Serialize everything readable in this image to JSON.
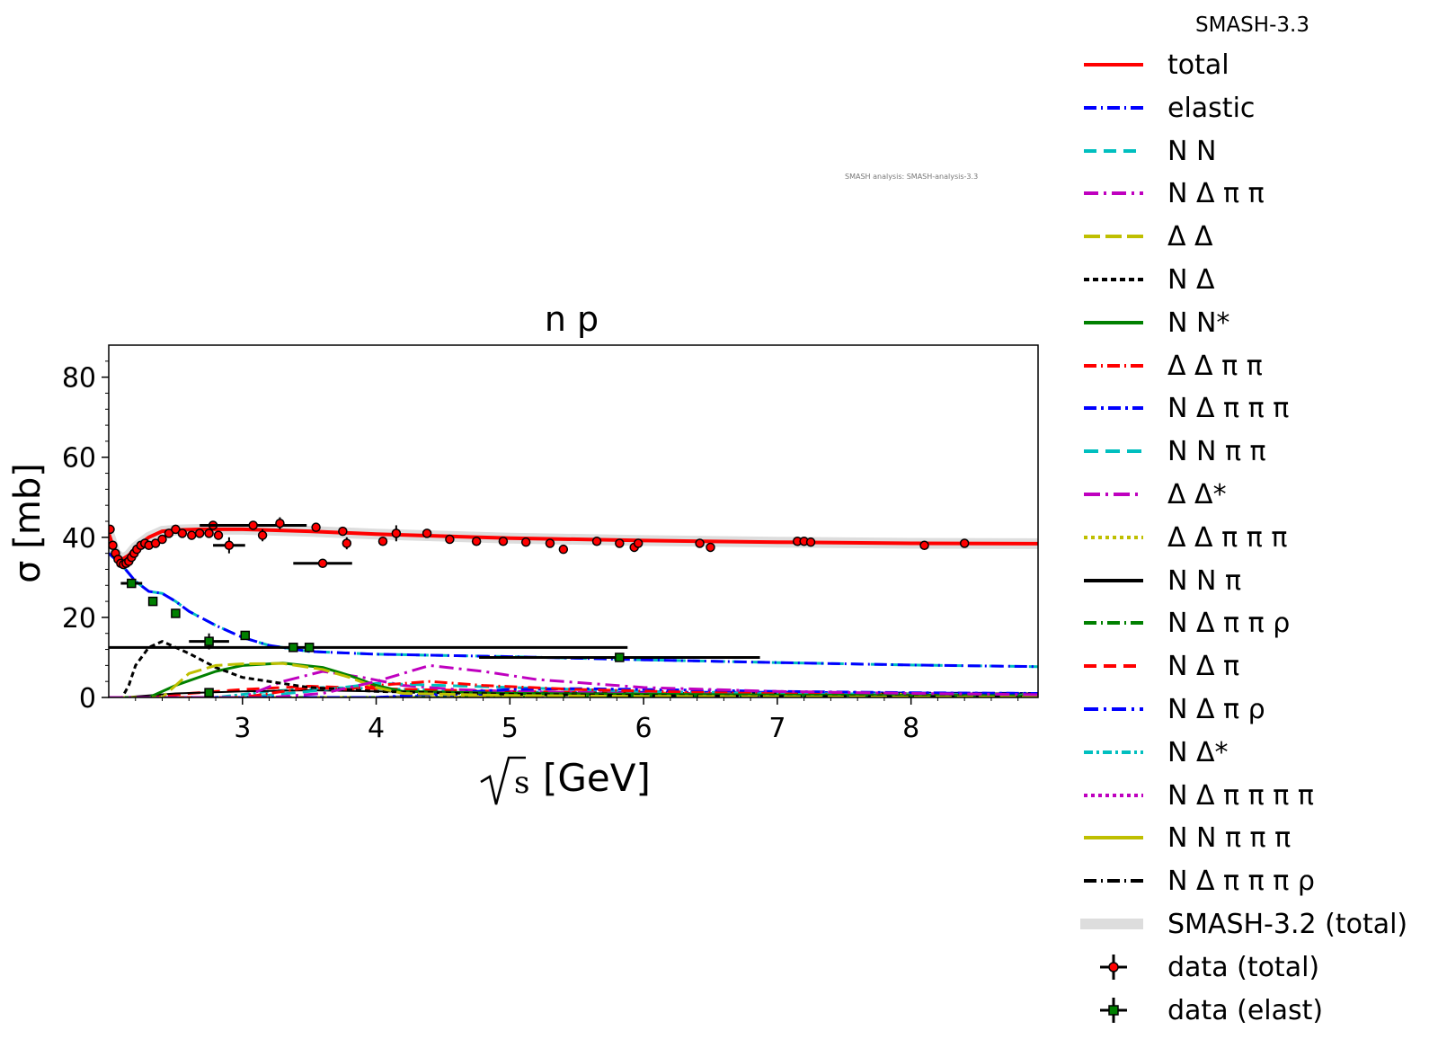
{
  "chart_data": {
    "type": "line",
    "title": "n p",
    "xlabel": "[GeV]",
    "xlabel_prefix": "√s",
    "ylabel": "σ [mb]",
    "xlim": [
      2.0,
      8.95
    ],
    "ylim": [
      0,
      88
    ],
    "x_ticks": [
      3,
      4,
      5,
      6,
      7,
      8
    ],
    "y_ticks": [
      0,
      20,
      40,
      60,
      80
    ],
    "watermark": "SMASH analysis: SMASH-analysis-3.3",
    "legend_title": "SMASH-3.3",
    "legend_position": "right, outside",
    "series": [
      {
        "name": "total",
        "color": "#ff0000",
        "dash": "solid",
        "width": 4,
        "x": [
          2.0,
          2.05,
          2.1,
          2.15,
          2.2,
          2.3,
          2.4,
          2.5,
          2.7,
          3.0,
          3.5,
          4.0,
          5.0,
          6.0,
          7.0,
          8.0,
          8.95
        ],
        "y": [
          41,
          36,
          34.5,
          35.5,
          37.5,
          40,
          41.5,
          41.8,
          42,
          42,
          41.5,
          40.8,
          39.8,
          39.2,
          38.8,
          38.5,
          38.4
        ]
      },
      {
        "name": "elastic",
        "color": "#0000ff",
        "dash": "14,5,2,5",
        "width": 3,
        "x": [
          2.0,
          2.1,
          2.2,
          2.3,
          2.4,
          2.5,
          2.6,
          2.8,
          3.0,
          3.2,
          3.5,
          4.0,
          5.0,
          6.0,
          7.0,
          8.0,
          8.95
        ],
        "y": [
          36,
          33,
          29,
          26.5,
          26,
          24,
          21.5,
          18,
          15,
          13,
          11.5,
          10.8,
          10.2,
          9.4,
          8.7,
          8.1,
          7.7
        ]
      },
      {
        "name": "N N",
        "color": "#00bfbf",
        "dash": "14,8",
        "width": 3,
        "x": [
          2.0,
          2.1,
          2.2,
          2.3,
          2.4,
          2.5,
          2.6,
          2.8,
          3.0,
          3.2,
          3.5,
          4.0,
          5.0,
          6.0,
          7.0,
          8.0,
          8.95
        ],
        "y": [
          36,
          33,
          29,
          26.5,
          26,
          24,
          21.5,
          18,
          15,
          13,
          11.5,
          10.8,
          10.2,
          9.4,
          8.7,
          8.1,
          7.7
        ]
      },
      {
        "name": "N Δ π π",
        "color": "#bf00bf",
        "dash": "16,6,3,6",
        "width": 3,
        "x": [
          2.0,
          3.2,
          3.6,
          4.0,
          4.4,
          4.8,
          5.2,
          6.0,
          7.0,
          8.0,
          8.95
        ],
        "y": [
          0,
          0,
          1,
          4,
          8,
          6.5,
          4.5,
          2.5,
          1.5,
          1.0,
          0.7
        ]
      },
      {
        "name": "Δ Δ",
        "color": "#bfbf00",
        "dash": "18,6",
        "width": 3,
        "x": [
          2.0,
          2.4,
          2.6,
          2.8,
          3.0,
          3.3,
          3.6,
          3.8,
          4.0,
          4.2,
          5.0,
          6.0,
          7.0,
          8.0,
          8.95
        ],
        "y": [
          0,
          0,
          6,
          8,
          8.4,
          8.5,
          7,
          5,
          2.5,
          1,
          0.5,
          0.3,
          0.2,
          0.1,
          0.1
        ]
      },
      {
        "name": "N Δ",
        "color": "#000000",
        "dash": "6,4",
        "width": 3,
        "x": [
          2.0,
          2.1,
          2.15,
          2.2,
          2.3,
          2.4,
          2.6,
          2.8,
          3.0,
          3.5,
          4.0,
          5.0,
          6.0,
          7.0,
          8.0,
          8.95
        ],
        "y": [
          0,
          0,
          3,
          8,
          12.5,
          14,
          11,
          7.5,
          5,
          2.5,
          1.5,
          0.8,
          0.5,
          0.3,
          0.2,
          0.1
        ]
      },
      {
        "name": "N N*",
        "color": "#008000",
        "dash": "solid",
        "width": 3,
        "x": [
          2.0,
          2.3,
          2.5,
          2.8,
          3.0,
          3.3,
          3.6,
          3.8,
          4.0,
          4.2,
          5.0,
          6.0,
          7.0,
          8.0,
          8.95
        ],
        "y": [
          0,
          0,
          3,
          6.5,
          8,
          8.6,
          7.5,
          5.5,
          3,
          1.5,
          1.0,
          0.8,
          0.6,
          0.5,
          0.4
        ]
      },
      {
        "name": "Δ Δ π π",
        "color": "#ff0000",
        "dash": "14,5,2,5",
        "width": 3,
        "x": [
          2.0,
          3.0,
          3.5,
          3.8,
          4.0,
          4.4,
          4.8,
          5.5,
          6.5,
          7.5,
          8.95
        ],
        "y": [
          0,
          0,
          2.5,
          2,
          3,
          4,
          3,
          2,
          1.2,
          0.7,
          0.4
        ]
      },
      {
        "name": "N Δ π π π",
        "color": "#0000ff",
        "dash": "14,5,3,5",
        "width": 3,
        "x": [
          2.0,
          4.0,
          4.5,
          5.0,
          5.5,
          6.0,
          7.0,
          8.0,
          8.95
        ],
        "y": [
          0,
          0,
          1,
          2,
          2.2,
          2,
          1.5,
          1.2,
          1.0
        ]
      },
      {
        "name": "N N π π",
        "color": "#00bfbf",
        "dash": "16,8",
        "width": 3,
        "x": [
          2.0,
          3.0,
          3.5,
          4.0,
          4.5,
          5.0,
          5.5,
          6.0,
          7.0,
          8.0,
          8.95
        ],
        "y": [
          0,
          0,
          1.5,
          3.5,
          3,
          2.5,
          2,
          1.5,
          1,
          0.8,
          0.6
        ]
      },
      {
        "name": "Δ Δ*",
        "color": "#bf00bf",
        "dash": "18,6,3,6",
        "width": 3,
        "x": [
          2.0,
          3.0,
          3.3,
          3.6,
          3.9,
          4.2,
          4.6,
          5.0,
          6.0,
          7.0,
          8.95
        ],
        "y": [
          0,
          0,
          4,
          6.5,
          5,
          3,
          2,
          1.5,
          1,
          0.7,
          0.4
        ]
      },
      {
        "name": "Δ Δ π π π",
        "color": "#bfbf00",
        "dash": "4,4",
        "width": 3,
        "x": [
          2.0,
          4.5,
          5.0,
          6.0,
          7.0,
          8.0,
          8.95
        ],
        "y": [
          0,
          0,
          0.5,
          0.9,
          0.9,
          0.8,
          0.7
        ]
      },
      {
        "name": "N N π",
        "color": "#000000",
        "dash": "solid",
        "width": 2,
        "x": [
          2.0,
          2.1,
          2.3,
          2.5,
          3.0,
          3.5,
          4.0,
          5.0,
          6.0,
          7.0,
          8.0,
          8.95
        ],
        "y": [
          0,
          0,
          0.5,
          1,
          1.5,
          1.8,
          1.5,
          1.2,
          1.0,
          1.0,
          1.0,
          1.0
        ]
      },
      {
        "name": "N Δ π π ρ",
        "color": "#008000",
        "dash": "14,5,2,5",
        "width": 3,
        "x": [
          2.0,
          5.0,
          6.0,
          7.0,
          8.0,
          8.95
        ],
        "y": [
          0,
          0,
          0.3,
          0.6,
          0.7,
          0.7
        ]
      },
      {
        "name": "N Δ π",
        "color": "#ff0000",
        "dash": "14,8",
        "width": 3,
        "x": [
          2.0,
          2.3,
          2.6,
          3.0,
          3.5,
          4.0,
          5.0,
          6.0,
          7.0,
          8.0,
          8.95
        ],
        "y": [
          0,
          0,
          1,
          2,
          2.8,
          2.2,
          1.5,
          1.1,
          0.8,
          0.6,
          0.5
        ]
      },
      {
        "name": "N Δ π ρ",
        "color": "#0000ff",
        "dash": "16,6,3,6",
        "width": 3,
        "x": [
          2.0,
          4.0,
          5.0,
          6.0,
          7.0,
          8.0,
          8.95
        ],
        "y": [
          0,
          0,
          1,
          1.3,
          1.3,
          1.1,
          1.0
        ]
      },
      {
        "name": "N Δ*",
        "color": "#00bfbf",
        "dash": "10,4,3,4",
        "width": 3,
        "x": [
          2.0,
          2.8,
          3.2,
          3.6,
          4.0,
          4.5,
          5.0,
          6.0,
          7.0,
          8.0,
          8.95
        ],
        "y": [
          0,
          0,
          1.5,
          2.5,
          2.2,
          1.8,
          1.4,
          1.0,
          0.7,
          0.5,
          0.4
        ]
      },
      {
        "name": "N Δ π π π π",
        "color": "#bf00bf",
        "dash": "4,4",
        "width": 3,
        "x": [
          2.0,
          5.5,
          6.5,
          7.5,
          8.95
        ],
        "y": [
          0,
          0,
          0.3,
          0.4,
          0.4
        ]
      },
      {
        "name": "N N π π π",
        "color": "#bfbf00",
        "dash": "solid",
        "width": 2,
        "x": [
          2.0,
          4.0,
          5.0,
          6.0,
          7.0,
          8.0,
          8.95
        ],
        "y": [
          0,
          0,
          0.4,
          0.6,
          0.6,
          0.6,
          0.5
        ]
      },
      {
        "name": "N Δ π π π ρ",
        "color": "#000000",
        "dash": "14,5,2,5",
        "width": 3,
        "x": [
          2.0,
          6.0,
          7.0,
          8.0,
          8.95
        ],
        "y": [
          0,
          0,
          0.2,
          0.3,
          0.4
        ]
      },
      {
        "name": "SMASH-3.2 (total)",
        "color": "#dddddd",
        "dash": "band",
        "width": 12,
        "x": [
          2.0,
          2.05,
          2.1,
          2.15,
          2.2,
          2.3,
          2.4,
          2.5,
          2.7,
          3.0,
          3.5,
          4.0,
          5.0,
          6.0,
          7.0,
          8.0,
          8.95
        ],
        "y": [
          41,
          36,
          34.5,
          35.5,
          37.5,
          40,
          41.5,
          41.8,
          42,
          42,
          41.5,
          40.8,
          39.8,
          39.2,
          38.8,
          38.5,
          38.4
        ]
      }
    ],
    "data_total": [
      {
        "x": 2.01,
        "y": 42
      },
      {
        "x": 2.03,
        "y": 38
      },
      {
        "x": 2.05,
        "y": 36
      },
      {
        "x": 2.07,
        "y": 34.5
      },
      {
        "x": 2.09,
        "y": 33.5
      },
      {
        "x": 2.11,
        "y": 33.2
      },
      {
        "x": 2.13,
        "y": 33.5
      },
      {
        "x": 2.15,
        "y": 34
      },
      {
        "x": 2.17,
        "y": 35
      },
      {
        "x": 2.19,
        "y": 36
      },
      {
        "x": 2.21,
        "y": 37
      },
      {
        "x": 2.24,
        "y": 38
      },
      {
        "x": 2.27,
        "y": 38.5
      },
      {
        "x": 2.3,
        "y": 38
      },
      {
        "x": 2.35,
        "y": 38.5
      },
      {
        "x": 2.4,
        "y": 39.5
      },
      {
        "x": 2.45,
        "y": 41
      },
      {
        "x": 2.5,
        "y": 42
      },
      {
        "x": 2.55,
        "y": 41
      },
      {
        "x": 2.62,
        "y": 40.5
      },
      {
        "x": 2.68,
        "y": 41
      },
      {
        "x": 2.75,
        "y": 41
      },
      {
        "x": 2.82,
        "y": 40.5
      },
      {
        "x": 2.9,
        "y": 38,
        "xerr": 0.12,
        "yerr": 2
      },
      {
        "x": 2.78,
        "y": 43
      },
      {
        "x": 3.08,
        "y": 43,
        "xerr": 0.4
      },
      {
        "x": 3.15,
        "y": 40.5,
        "yerr": 1.5
      },
      {
        "x": 3.28,
        "y": 43.5,
        "yerr": 1.5
      },
      {
        "x": 3.55,
        "y": 42.5
      },
      {
        "x": 3.6,
        "y": 33.5,
        "xerr": 0.22,
        "yerr": 1
      },
      {
        "x": 3.75,
        "y": 41.5
      },
      {
        "x": 3.78,
        "y": 38.5,
        "yerr": 1.5
      },
      {
        "x": 4.05,
        "y": 39
      },
      {
        "x": 4.15,
        "y": 41,
        "yerr": 2
      },
      {
        "x": 4.38,
        "y": 41
      },
      {
        "x": 4.55,
        "y": 39.5
      },
      {
        "x": 4.75,
        "y": 39
      },
      {
        "x": 4.95,
        "y": 39
      },
      {
        "x": 5.12,
        "y": 38.8
      },
      {
        "x": 5.3,
        "y": 38.5
      },
      {
        "x": 5.4,
        "y": 37
      },
      {
        "x": 5.65,
        "y": 39
      },
      {
        "x": 5.82,
        "y": 38.5
      },
      {
        "x": 5.93,
        "y": 37.5
      },
      {
        "x": 5.96,
        "y": 38.5
      },
      {
        "x": 6.42,
        "y": 38.5
      },
      {
        "x": 6.5,
        "y": 37.5
      },
      {
        "x": 7.15,
        "y": 39
      },
      {
        "x": 7.2,
        "y": 39
      },
      {
        "x": 7.25,
        "y": 38.8
      },
      {
        "x": 8.1,
        "y": 38
      },
      {
        "x": 8.4,
        "y": 38.5
      }
    ],
    "data_elast": [
      {
        "x": 2.17,
        "y": 28.5,
        "xerr": 0.08
      },
      {
        "x": 2.33,
        "y": 24
      },
      {
        "x": 2.5,
        "y": 21
      },
      {
        "x": 2.75,
        "y": 14,
        "xerr": 0.15,
        "yerr": 2
      },
      {
        "x": 2.75,
        "y": 1.2
      },
      {
        "x": 3.02,
        "y": 15.5
      },
      {
        "x": 3.38,
        "y": 12.5,
        "xerr": 2.5
      },
      {
        "x": 3.5,
        "y": 12.5
      },
      {
        "x": 5.82,
        "y": 10,
        "xerr": 1.05
      }
    ]
  }
}
